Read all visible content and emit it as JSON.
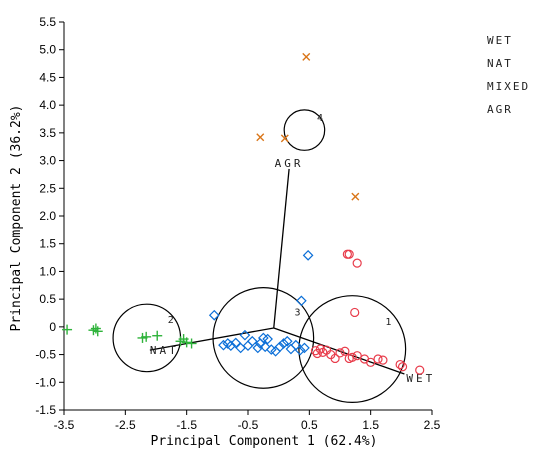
{
  "chart_data": {
    "type": "scatter",
    "xlabel": "Principal Component 1 (62.4%)",
    "ylabel": "Principal Component 2 (36.2%)",
    "xlim": [
      -3.5,
      2.5
    ],
    "ylim": [
      -1.5,
      5.5
    ],
    "xticks": [
      "-3.5",
      "-2.5",
      "-1.5",
      "-0.5",
      "0.5",
      "1.5",
      "2.5"
    ],
    "yticks": [
      "-1.5",
      "-1.0",
      "-0.5",
      "0",
      "0.5",
      "1.0",
      "1.5",
      "2.0",
      "2.5",
      "3.0",
      "3.5",
      "4.0",
      "4.5",
      "5.0",
      "5.5"
    ],
    "grid": false,
    "legend_position": "right",
    "legend": [
      "WET",
      "NAT",
      "MIXED",
      "AGR"
    ],
    "colors": {
      "WET": "#e83c4b",
      "NAT": "#0b6fd8",
      "MIXED": "#2fb33b",
      "AGR": "#d97518"
    },
    "series": [
      {
        "name": "WET",
        "marker": "circle",
        "points": [
          [
            1.12,
            1.31
          ],
          [
            1.15,
            1.31
          ],
          [
            1.28,
            1.15
          ],
          [
            1.24,
            0.26
          ],
          [
            0.6,
            -0.43
          ],
          [
            0.63,
            -0.48
          ],
          [
            0.68,
            -0.4
          ],
          [
            0.72,
            -0.46
          ],
          [
            0.78,
            -0.42
          ],
          [
            0.85,
            -0.5
          ],
          [
            0.92,
            -0.57
          ],
          [
            1.0,
            -0.47
          ],
          [
            1.08,
            -0.44
          ],
          [
            1.15,
            -0.57
          ],
          [
            1.2,
            -0.55
          ],
          [
            1.28,
            -0.52
          ],
          [
            1.4,
            -0.58
          ],
          [
            1.5,
            -0.64
          ],
          [
            1.62,
            -0.58
          ],
          [
            1.7,
            -0.6
          ],
          [
            1.98,
            -0.68
          ],
          [
            2.02,
            -0.72
          ],
          [
            2.3,
            -0.78
          ]
        ]
      },
      {
        "name": "NAT",
        "marker": "diamond",
        "points": [
          [
            0.48,
            1.29
          ],
          [
            0.37,
            0.47
          ],
          [
            -1.05,
            0.21
          ],
          [
            -0.9,
            -0.33
          ],
          [
            -0.83,
            -0.3
          ],
          [
            -0.78,
            -0.34
          ],
          [
            -0.7,
            -0.29
          ],
          [
            -0.62,
            -0.38
          ],
          [
            -0.55,
            -0.15
          ],
          [
            -0.5,
            -0.34
          ],
          [
            -0.43,
            -0.26
          ],
          [
            -0.3,
            -0.3
          ],
          [
            -0.25,
            -0.2
          ],
          [
            -0.22,
            -0.36
          ],
          [
            -0.18,
            -0.22
          ],
          [
            -0.12,
            -0.41
          ],
          [
            -0.05,
            -0.44
          ],
          [
            0.02,
            -0.36
          ],
          [
            0.08,
            -0.3
          ],
          [
            0.14,
            -0.26
          ],
          [
            0.2,
            -0.4
          ],
          [
            0.28,
            -0.33
          ],
          [
            0.35,
            -0.42
          ],
          [
            0.42,
            -0.38
          ],
          [
            -0.34,
            -0.38
          ]
        ]
      },
      {
        "name": "MIXED",
        "marker": "plus",
        "points": [
          [
            -3.45,
            -0.05
          ],
          [
            -3.02,
            -0.06
          ],
          [
            -2.98,
            -0.03
          ],
          [
            -2.95,
            -0.08
          ],
          [
            -2.22,
            -0.2
          ],
          [
            -2.16,
            -0.18
          ],
          [
            -1.98,
            -0.16
          ],
          [
            -1.6,
            -0.26
          ],
          [
            -1.55,
            -0.22
          ],
          [
            -1.5,
            -0.28
          ],
          [
            -1.42,
            -0.3
          ]
        ]
      },
      {
        "name": "AGR",
        "marker": "x",
        "points": [
          [
            0.45,
            4.87
          ],
          [
            -0.3,
            3.42
          ],
          [
            0.1,
            3.4
          ],
          [
            1.25,
            2.35
          ]
        ]
      }
    ],
    "group_circles": [
      {
        "label": "1",
        "center": [
          1.2,
          -0.4
        ],
        "radius_x": 0.87
      },
      {
        "label": "2",
        "center": [
          -2.15,
          -0.2
        ],
        "radius_x": 0.55
      },
      {
        "label": "3",
        "center": [
          -0.25,
          -0.2
        ],
        "radius_x": 0.82
      },
      {
        "label": "4",
        "center": [
          0.42,
          3.55
        ],
        "radius_x": 0.33
      }
    ],
    "variable_vectors": [
      {
        "label": "WET",
        "end": [
          2.05,
          -0.85
        ]
      },
      {
        "label": "NAT",
        "end": [
          -2.1,
          -0.42
        ]
      },
      {
        "label": "AGR",
        "end": [
          0.17,
          2.85
        ]
      }
    ],
    "vector_origin": [
      -0.08,
      -0.02
    ]
  }
}
